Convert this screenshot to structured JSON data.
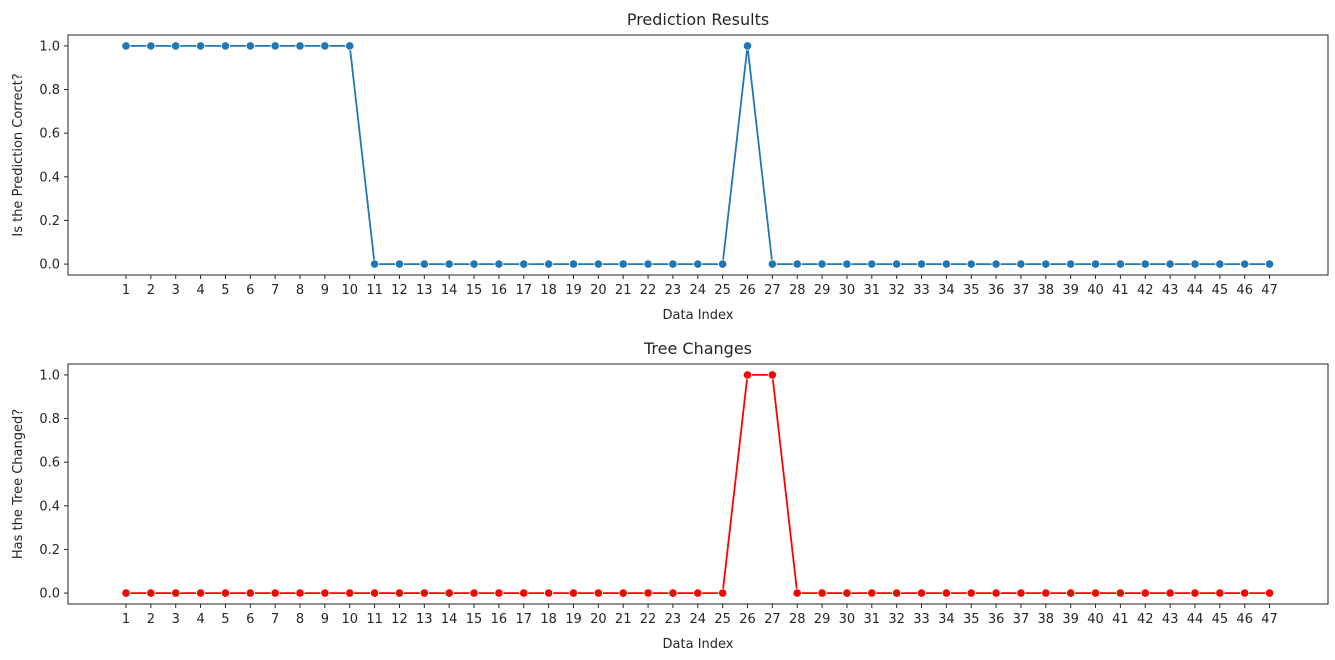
{
  "chart_data": [
    {
      "type": "line",
      "title": "Prediction Results",
      "xlabel": "Data Index",
      "ylabel": "Is the Prediction Correct?",
      "x": [
        1,
        2,
        3,
        4,
        5,
        6,
        7,
        8,
        9,
        10,
        11,
        12,
        13,
        14,
        15,
        16,
        17,
        18,
        19,
        20,
        21,
        22,
        23,
        24,
        25,
        26,
        27,
        28,
        29,
        30,
        31,
        32,
        33,
        34,
        35,
        36,
        37,
        38,
        39,
        40,
        41,
        42,
        43,
        44,
        45,
        46,
        47
      ],
      "y": [
        1,
        1,
        1,
        1,
        1,
        1,
        1,
        1,
        1,
        1,
        0,
        0,
        0,
        0,
        0,
        0,
        0,
        0,
        0,
        0,
        0,
        0,
        0,
        0,
        0,
        1,
        0,
        0,
        0,
        0,
        0,
        0,
        0,
        0,
        0,
        0,
        0,
        0,
        0,
        0,
        0,
        0,
        0,
        0,
        0,
        0,
        0
      ],
      "yticks": [
        "0.0",
        "0.2",
        "0.4",
        "0.6",
        "0.8",
        "1.0"
      ],
      "ylim": [
        -0.05,
        1.05
      ],
      "color": "#1f77b4",
      "grid": false,
      "marker": "circle"
    },
    {
      "type": "line",
      "title": "Tree Changes",
      "xlabel": "Data Index",
      "ylabel": "Has the Tree Changed?",
      "x": [
        1,
        2,
        3,
        4,
        5,
        6,
        7,
        8,
        9,
        10,
        11,
        12,
        13,
        14,
        15,
        16,
        17,
        18,
        19,
        20,
        21,
        22,
        23,
        24,
        25,
        26,
        27,
        28,
        29,
        30,
        31,
        32,
        33,
        34,
        35,
        36,
        37,
        38,
        39,
        40,
        41,
        42,
        43,
        44,
        45,
        46,
        47
      ],
      "y": [
        0,
        0,
        0,
        0,
        0,
        0,
        0,
        0,
        0,
        0,
        0,
        0,
        0,
        0,
        0,
        0,
        0,
        0,
        0,
        0,
        0,
        0,
        0,
        0,
        0,
        1,
        1,
        0,
        0,
        0,
        0,
        0,
        0,
        0,
        0,
        0,
        0,
        0,
        0,
        0,
        0,
        0,
        0,
        0,
        0,
        0,
        0
      ],
      "yticks": [
        "0.0",
        "0.2",
        "0.4",
        "0.6",
        "0.8",
        "1.0"
      ],
      "ylim": [
        -0.05,
        1.05
      ],
      "color": "#ff0000",
      "grid": false,
      "marker": "circle"
    }
  ]
}
